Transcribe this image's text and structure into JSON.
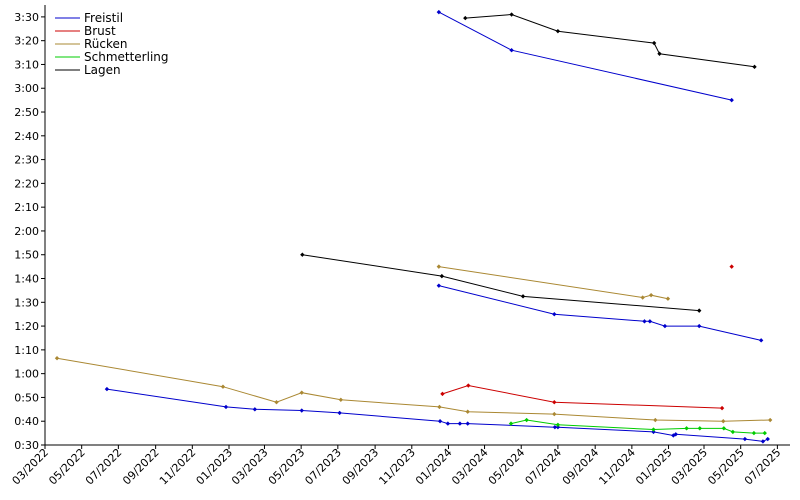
{
  "chart_data": {
    "type": "line",
    "grid": false,
    "legend_position": "top-left",
    "title": "",
    "xlabel": "",
    "ylabel": "",
    "x_range": [
      "2022-03-01",
      "2025-07-22"
    ],
    "y_range": [
      30,
      215
    ],
    "x_ticks": [
      {
        "value": "2022-03-01",
        "label": "03/2022"
      },
      {
        "value": "2022-05-01",
        "label": "05/2022"
      },
      {
        "value": "2022-07-01",
        "label": "07/2022"
      },
      {
        "value": "2022-09-01",
        "label": "09/2022"
      },
      {
        "value": "2022-11-01",
        "label": "11/2022"
      },
      {
        "value": "2023-01-01",
        "label": "01/2023"
      },
      {
        "value": "2023-03-01",
        "label": "03/2023"
      },
      {
        "value": "2023-05-01",
        "label": "05/2023"
      },
      {
        "value": "2023-07-01",
        "label": "07/2023"
      },
      {
        "value": "2023-09-01",
        "label": "09/2023"
      },
      {
        "value": "2023-11-01",
        "label": "11/2023"
      },
      {
        "value": "2024-01-01",
        "label": "01/2024"
      },
      {
        "value": "2024-03-01",
        "label": "03/2024"
      },
      {
        "value": "2024-05-01",
        "label": "05/2024"
      },
      {
        "value": "2024-07-01",
        "label": "07/2024"
      },
      {
        "value": "2024-09-01",
        "label": "09/2024"
      },
      {
        "value": "2024-11-01",
        "label": "11/2024"
      },
      {
        "value": "2025-01-01",
        "label": "01/2025"
      },
      {
        "value": "2025-03-01",
        "label": "03/2025"
      },
      {
        "value": "2025-05-01",
        "label": "05/2025"
      },
      {
        "value": "2025-07-01",
        "label": "07/2025"
      }
    ],
    "y_ticks": [
      {
        "value": 30,
        "label": "0:30"
      },
      {
        "value": 40,
        "label": "0:40"
      },
      {
        "value": 50,
        "label": "0:50"
      },
      {
        "value": 60,
        "label": "1:00"
      },
      {
        "value": 70,
        "label": "1:10"
      },
      {
        "value": 80,
        "label": "1:20"
      },
      {
        "value": 90,
        "label": "1:30"
      },
      {
        "value": 100,
        "label": "1:40"
      },
      {
        "value": 110,
        "label": "1:50"
      },
      {
        "value": 120,
        "label": "2:00"
      },
      {
        "value": 130,
        "label": "2:10"
      },
      {
        "value": 140,
        "label": "2:20"
      },
      {
        "value": 150,
        "label": "2:30"
      },
      {
        "value": 160,
        "label": "2:40"
      },
      {
        "value": 170,
        "label": "2:50"
      },
      {
        "value": 180,
        "label": "3:00"
      },
      {
        "value": 190,
        "label": "3:10"
      },
      {
        "value": 200,
        "label": "3:20"
      },
      {
        "value": 210,
        "label": "3:30"
      }
    ],
    "series": [
      {
        "name": "Freistil",
        "color": "#0000cc",
        "lines": [
          [
            {
              "x": "2022-06-12",
              "y": 53.5
            },
            {
              "x": "2022-12-27",
              "y": 46.0
            },
            {
              "x": "2023-02-13",
              "y": 45.0
            },
            {
              "x": "2023-05-02",
              "y": 44.5
            },
            {
              "x": "2023-07-04",
              "y": 43.5
            },
            {
              "x": "2023-12-18",
              "y": 40.0
            },
            {
              "x": "2023-12-31",
              "y": 39.0
            },
            {
              "x": "2024-01-20",
              "y": 39.0
            },
            {
              "x": "2024-02-02",
              "y": 39.0
            },
            {
              "x": "2024-06-26",
              "y": 37.5
            },
            {
              "x": "2024-07-01",
              "y": 37.5
            },
            {
              "x": "2024-12-07",
              "y": 35.5
            },
            {
              "x": "2025-01-09",
              "y": 34.0
            },
            {
              "x": "2025-01-13",
              "y": 34.5
            },
            {
              "x": "2025-05-08",
              "y": 32.5
            },
            {
              "x": "2025-06-07",
              "y": 31.5
            },
            {
              "x": "2025-06-15",
              "y": 32.5
            }
          ],
          [
            {
              "x": "2023-12-16",
              "y": 97.0
            },
            {
              "x": "2024-06-25",
              "y": 85.0
            },
            {
              "x": "2024-11-22",
              "y": 82.0
            },
            {
              "x": "2024-12-01",
              "y": 82.0
            },
            {
              "x": "2024-12-26",
              "y": 80.0
            },
            {
              "x": "2025-02-21",
              "y": 80.0
            },
            {
              "x": "2025-06-04",
              "y": 74.0
            }
          ],
          [
            {
              "x": "2023-12-16",
              "y": 212.0
            },
            {
              "x": "2024-04-15",
              "y": 196.0
            },
            {
              "x": "2025-04-16",
              "y": 175.0
            }
          ]
        ]
      },
      {
        "name": "Brust",
        "color": "#cc0000",
        "lines": [
          [
            {
              "x": "2023-12-22",
              "y": 51.5
            },
            {
              "x": "2024-02-03",
              "y": 55.0
            },
            {
              "x": "2024-06-25",
              "y": 48.0
            },
            {
              "x": "2025-03-31",
              "y": 45.5
            }
          ],
          [
            {
              "x": "2025-04-16",
              "y": 105.0
            }
          ]
        ]
      },
      {
        "name": "Rücken",
        "color": "#aa8833",
        "lines": [
          [
            {
              "x": "2022-03-21",
              "y": 66.5
            },
            {
              "x": "2022-12-22",
              "y": 54.5
            },
            {
              "x": "2023-03-21",
              "y": 48.0
            },
            {
              "x": "2023-05-02",
              "y": 52.0
            },
            {
              "x": "2023-07-06",
              "y": 49.0
            },
            {
              "x": "2023-12-17",
              "y": 46.0
            },
            {
              "x": "2024-02-02",
              "y": 44.0
            },
            {
              "x": "2024-06-25",
              "y": 43.0
            },
            {
              "x": "2024-12-10",
              "y": 40.5
            },
            {
              "x": "2025-04-02",
              "y": 40.0
            },
            {
              "x": "2025-06-19",
              "y": 40.5
            }
          ],
          [
            {
              "x": "2023-12-16",
              "y": 105.0
            },
            {
              "x": "2024-11-19",
              "y": 92.0
            },
            {
              "x": "2024-12-03",
              "y": 93.0
            },
            {
              "x": "2024-12-31",
              "y": 91.5
            }
          ]
        ]
      },
      {
        "name": "Schmetterling",
        "color": "#00cc00",
        "lines": [
          [
            {
              "x": "2024-04-14",
              "y": 39.0
            },
            {
              "x": "2024-05-10",
              "y": 40.5
            },
            {
              "x": "2024-07-01",
              "y": 38.5
            },
            {
              "x": "2024-12-07",
              "y": 36.5
            },
            {
              "x": "2025-01-31",
              "y": 37.0
            },
            {
              "x": "2025-02-22",
              "y": 37.0
            },
            {
              "x": "2025-04-03",
              "y": 37.0
            },
            {
              "x": "2025-04-18",
              "y": 35.5
            },
            {
              "x": "2025-05-23",
              "y": 35.0
            },
            {
              "x": "2025-06-10",
              "y": 35.0
            }
          ]
        ]
      },
      {
        "name": "Lagen",
        "color": "#000000",
        "lines": [
          [
            {
              "x": "2023-05-03",
              "y": 110.0
            },
            {
              "x": "2023-12-21",
              "y": 101.0
            },
            {
              "x": "2024-05-04",
              "y": 92.5
            },
            {
              "x": "2025-02-21",
              "y": 86.5
            }
          ],
          [
            {
              "x": "2024-01-29",
              "y": 209.5
            },
            {
              "x": "2024-04-15",
              "y": 211.0
            },
            {
              "x": "2024-07-01",
              "y": 204.0
            },
            {
              "x": "2024-12-08",
              "y": 199.0
            },
            {
              "x": "2024-12-17",
              "y": 194.5
            },
            {
              "x": "2025-05-24",
              "y": 189.0
            }
          ]
        ]
      }
    ]
  }
}
